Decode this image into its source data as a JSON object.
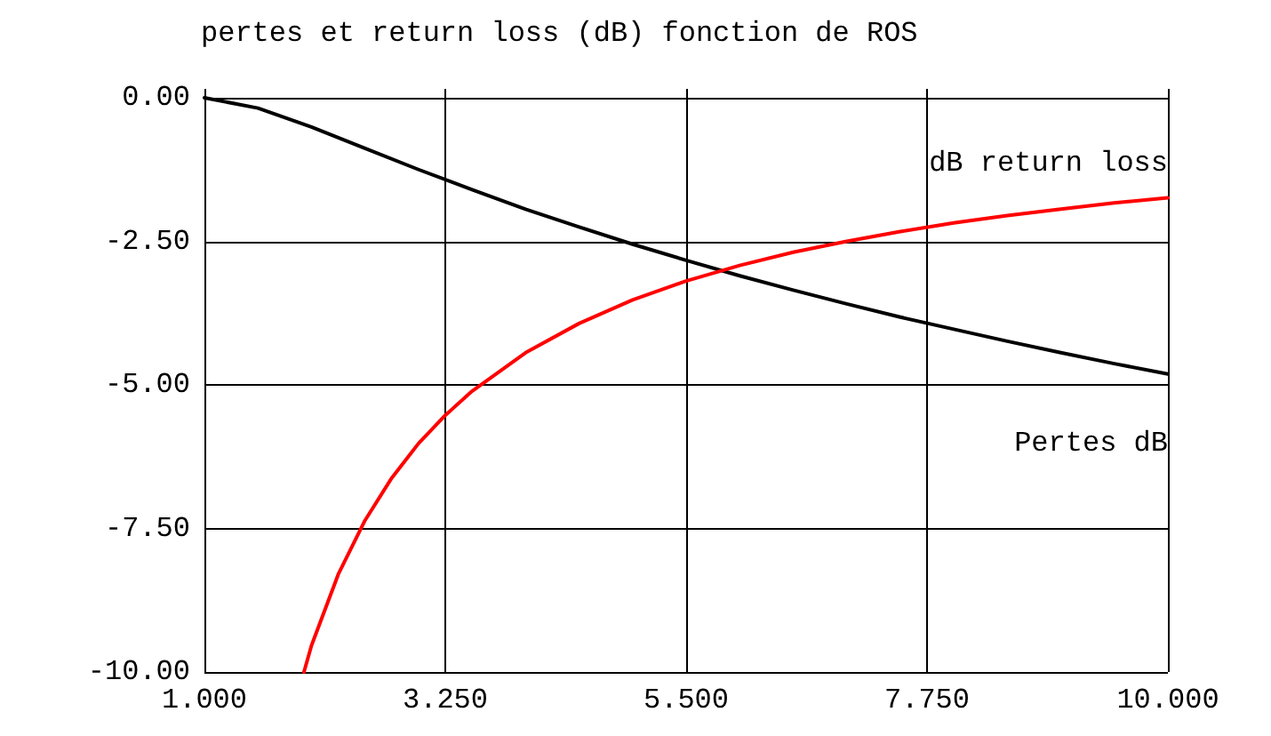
{
  "chart_data": {
    "type": "line",
    "title": "pertes et return loss (dB) fonction de ROS",
    "xlim": [
      1,
      10
    ],
    "xticks": [
      {
        "value": 1,
        "label": "1.000"
      },
      {
        "value": 3.25,
        "label": "3.250"
      },
      {
        "value": 5.5,
        "label": "5.500"
      },
      {
        "value": 7.75,
        "label": "7.750"
      },
      {
        "value": 10,
        "label": "10.000"
      }
    ],
    "ylim": [
      -10,
      0
    ],
    "yticks": [
      {
        "value": -10,
        "label": "-10.00"
      },
      {
        "value": -7.5,
        "label": "-7.50"
      },
      {
        "value": -5,
        "label": "-5.00"
      },
      {
        "value": -2.5,
        "label": "-2.50"
      },
      {
        "value": 0,
        "label": "0.00"
      }
    ],
    "grid": true,
    "legend": false,
    "marker": "none",
    "line_style": "solid",
    "series": [
      {
        "name": "dB return loss",
        "color": "#ff0000",
        "x": [
          1.93,
          2,
          2.25,
          2.5,
          2.75,
          3,
          3.25,
          3.5,
          4,
          4.5,
          5,
          5.5,
          6,
          6.5,
          7,
          7.5,
          8,
          8.5,
          9,
          9.5,
          10
        ],
        "values": [
          -10,
          -9.54,
          -8.3,
          -7.36,
          -6.62,
          -6.02,
          -5.53,
          -5.11,
          -4.44,
          -3.93,
          -3.52,
          -3.19,
          -2.92,
          -2.69,
          -2.5,
          -2.33,
          -2.18,
          -2.05,
          -1.94,
          -1.83,
          -1.74
        ]
      },
      {
        "name": "Pertes dB",
        "color": "#000000",
        "x": [
          1,
          1.5,
          2,
          2.5,
          3,
          3.5,
          4,
          4.5,
          5,
          5.5,
          6,
          6.5,
          7,
          7.5,
          8,
          8.5,
          9,
          9.5,
          10
        ],
        "values": [
          0,
          -0.18,
          -0.51,
          -0.88,
          -1.25,
          -1.6,
          -1.94,
          -2.25,
          -2.55,
          -2.83,
          -3.1,
          -3.35,
          -3.59,
          -3.82,
          -4.03,
          -4.24,
          -4.44,
          -4.63,
          -4.81
        ]
      }
    ]
  }
}
